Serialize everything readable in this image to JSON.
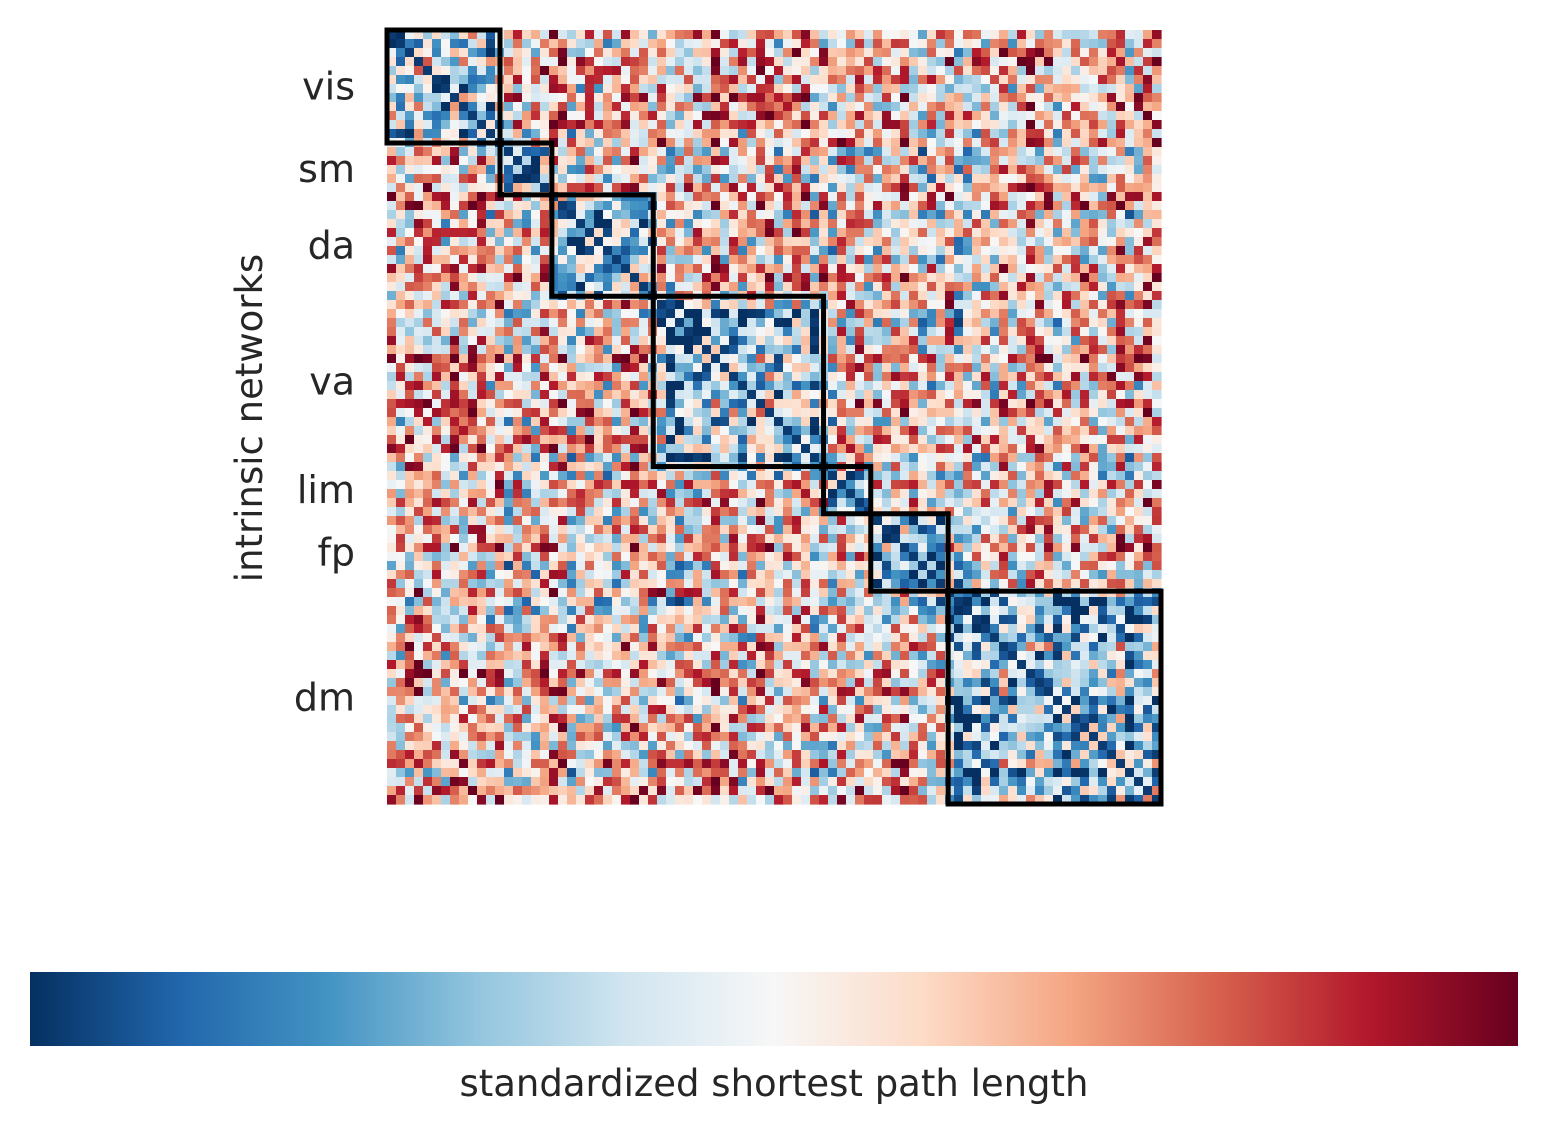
{
  "chart_data": {
    "type": "heatmap",
    "title": "",
    "xlabel": "",
    "ylabel": "intrinsic networks",
    "colormap": "RdBu_r",
    "colormap_stops": [
      "#053061",
      "#2166ac",
      "#4393c3",
      "#92c5de",
      "#d1e5f0",
      "#f7f7f7",
      "#fddbc7",
      "#f4a582",
      "#d6604d",
      "#b2182b",
      "#67001f"
    ],
    "colorbar": {
      "label": "standardized shortest path length",
      "orientation": "horizontal",
      "placement": "bottom"
    },
    "block_outline_color": "#000000",
    "networks": [
      {
        "name": "vis",
        "fraction": 0.146
      },
      {
        "name": "sm",
        "fraction": 0.067
      },
      {
        "name": "da",
        "fraction": 0.131
      },
      {
        "name": "va",
        "fraction": 0.22
      },
      {
        "name": "lim",
        "fraction": 0.061
      },
      {
        "name": "fp",
        "fraction": 0.1
      },
      {
        "name": "dm",
        "fraction": 0.275
      }
    ]
  }
}
